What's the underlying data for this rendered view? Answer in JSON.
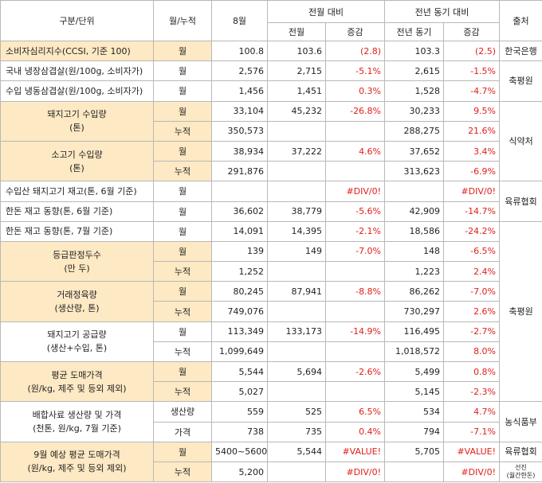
{
  "header": {
    "row1": [
      "구분/단위",
      "월/누적",
      "8월",
      "전월 대비",
      "전년 동기 대비",
      "출처"
    ],
    "row2": [
      "전월",
      "증감",
      "전년 동기",
      "증감"
    ]
  },
  "groups": [
    {
      "label": [
        "소비자심리지수(CCSI, 기준 100)"
      ],
      "rows": [
        {
          "unit": "월",
          "m": "100.8",
          "prev": "103.6",
          "prev_chg": "(2.8)",
          "yoy": "103.3",
          "yoy_chg": "(2.5)"
        }
      ]
    },
    {
      "label": [
        "국내 냉장삼겹살(원/100g, 소비자가)"
      ],
      "rows": [
        {
          "unit": "월",
          "m": "2,576",
          "prev": "2,715",
          "prev_chg": "-5.1%",
          "yoy": "2,615",
          "yoy_chg": "-1.5%"
        }
      ]
    },
    {
      "label": [
        "수입 냉동삼겹살(원/100g, 소비자가)"
      ],
      "rows": [
        {
          "unit": "월",
          "m": "1,456",
          "prev": "1,451",
          "prev_chg": "0.3%",
          "yoy": "1,528",
          "yoy_chg": "-4.7%"
        }
      ]
    },
    {
      "label": [
        "돼지고기 수입량",
        "(톤)"
      ],
      "rows": [
        {
          "unit": "월",
          "m": "33,104",
          "prev": "45,232",
          "prev_chg": "-26.8%",
          "yoy": "30,233",
          "yoy_chg": "9.5%"
        },
        {
          "unit": "누적",
          "m": "350,573",
          "yoy": "288,275",
          "yoy_chg": "21.6%"
        }
      ]
    },
    {
      "label": [
        "소고기 수입량",
        "(톤)"
      ],
      "rows": [
        {
          "unit": "월",
          "m": "38,934",
          "prev": "37,222",
          "prev_chg": "4.6%",
          "yoy": "37,652",
          "yoy_chg": "3.4%"
        },
        {
          "unit": "누적",
          "m": "291,876",
          "yoy": "313,623",
          "yoy_chg": "-6.9%"
        }
      ]
    },
    {
      "label": [
        "수입산 돼지고기 재고(톤, 6월 기준)"
      ],
      "rows": [
        {
          "unit": "월",
          "prev_chg": "#DIV/0!",
          "yoy_chg": "#DIV/0!"
        }
      ]
    },
    {
      "label": [
        "한돈 재고 동향(톤, 6월 기준)"
      ],
      "rows": [
        {
          "unit": "월",
          "m": "36,602",
          "prev": "38,779",
          "prev_chg": "-5.6%",
          "yoy": "42,909",
          "yoy_chg": "-14.7%"
        }
      ]
    },
    {
      "label": [
        "한돈 재고 동향(톤, 7월 기준)"
      ],
      "rows": [
        {
          "unit": "월",
          "m": "14,091",
          "prev": "14,395",
          "prev_chg": "-2.1%",
          "yoy": "18,586",
          "yoy_chg": "-24.2%"
        }
      ]
    },
    {
      "label": [
        "등급판정두수",
        "(만 두)"
      ],
      "rows": [
        {
          "unit": "월",
          "m": "139",
          "prev": "149",
          "prev_chg": "-7.0%",
          "yoy": "148",
          "yoy_chg": "-6.5%"
        },
        {
          "unit": "누적",
          "m": "1,252",
          "yoy": "1,223",
          "yoy_chg": "2.4%"
        }
      ]
    },
    {
      "label": [
        "거래정육량",
        "(생산량, 톤)"
      ],
      "rows": [
        {
          "unit": "월",
          "m": "80,245",
          "prev": "87,941",
          "prev_chg": "-8.8%",
          "yoy": "86,262",
          "yoy_chg": "-7.0%"
        },
        {
          "unit": "누적",
          "m": "749,076",
          "yoy": "730,297",
          "yoy_chg": "2.6%"
        }
      ]
    },
    {
      "label": [
        "돼지고기 공급량",
        "(생산+수입, 톤)"
      ],
      "rows": [
        {
          "unit": "월",
          "m": "113,349",
          "prev": "133,173",
          "prev_chg": "-14.9%",
          "yoy": "116,495",
          "yoy_chg": "-2.7%"
        },
        {
          "unit": "누적",
          "m": "1,099,649",
          "yoy": "1,018,572",
          "yoy_chg": "8.0%"
        }
      ]
    },
    {
      "label": [
        "평균 도매가격",
        "(원/kg, 제주 및 등외 제외)"
      ],
      "rows": [
        {
          "unit": "월",
          "m": "5,544",
          "prev": "5,694",
          "prev_chg": "-2.6%",
          "yoy": "5,499",
          "yoy_chg": "0.8%"
        },
        {
          "unit": "누적",
          "m": "5,027",
          "yoy": "5,145",
          "yoy_chg": "-2.3%"
        }
      ]
    },
    {
      "label": [
        "배합사료 생산량 및 가격",
        "(천톤, 원/kg, 7월 기준)"
      ],
      "rows": [
        {
          "unit": "생산량",
          "m": "559",
          "prev": "525",
          "prev_chg": "6.5%",
          "yoy": "534",
          "yoy_chg": "4.7%"
        },
        {
          "unit": "가격",
          "m": "738",
          "prev": "735",
          "prev_chg": "0.4%",
          "yoy": "794",
          "yoy_chg": "-7.1%"
        }
      ]
    },
    {
      "label": [
        "9월 예상 평균 도매가격",
        "(원/kg, 제주 및 등외 제외)"
      ],
      "rows": [
        {
          "unit": "월",
          "m": "5400~5600",
          "prev": "5,544",
          "prev_chg": "#VALUE!",
          "yoy": "5,705",
          "yoy_chg": "#VALUE!"
        },
        {
          "unit": "누적",
          "m": "5,200",
          "prev_chg": "#DIV/0!",
          "yoy_chg": "#DIV/0!"
        }
      ]
    }
  ],
  "sources": [
    [
      "한국은행"
    ],
    [
      "축평원"
    ],
    [
      "식약처"
    ],
    [
      "육류협회"
    ],
    [
      "축평원"
    ],
    [
      "농식품부"
    ],
    [
      "육류협회"
    ],
    [
      "선진",
      "(월간한돈)"
    ]
  ]
}
